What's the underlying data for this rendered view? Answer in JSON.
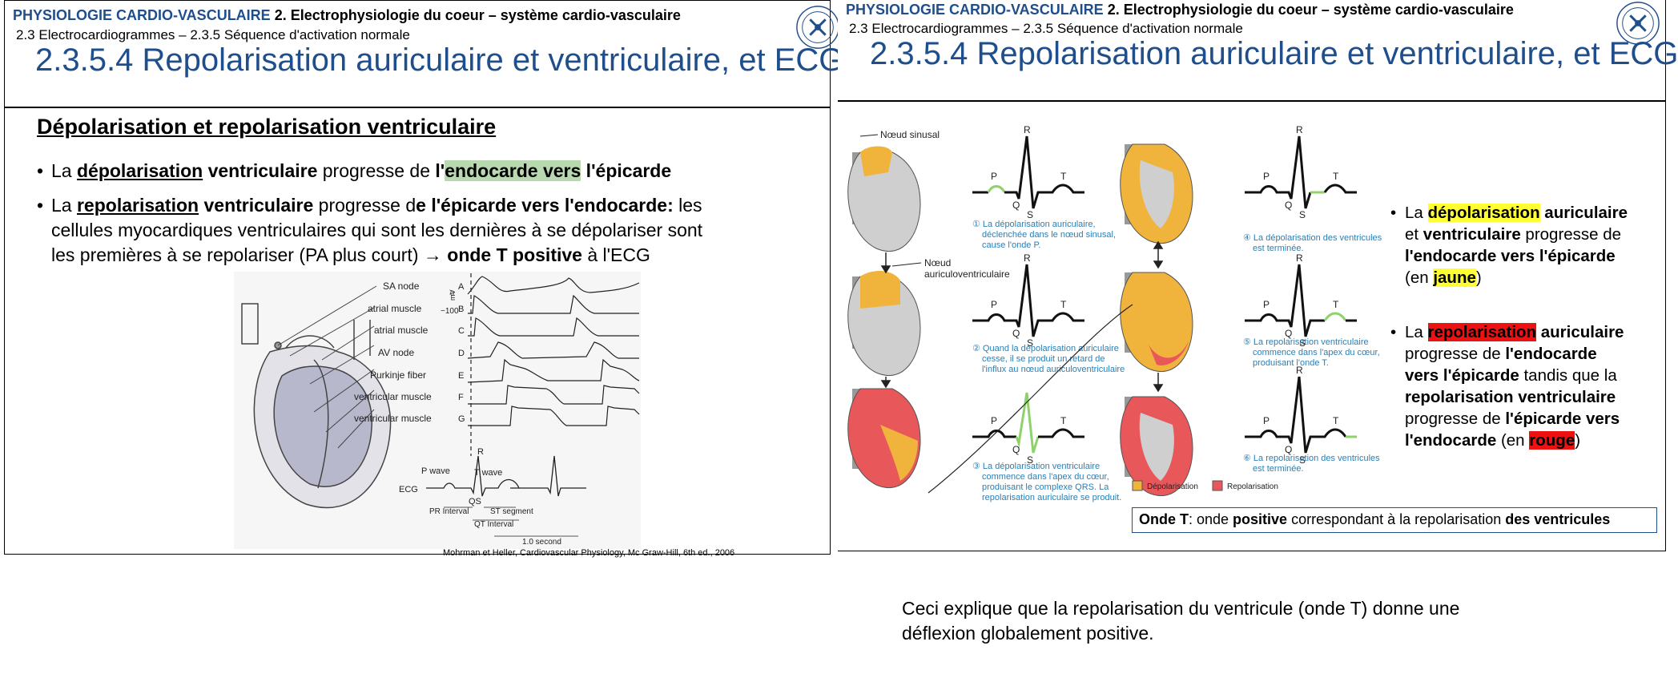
{
  "slide1": {
    "header_blue": "PHYSIOLOGIE CARDIO-VASCULAIRE",
    "header_black": " 2. Electrophysiologie du coeur – système cardio-vasculaire",
    "subheader": "2.3 Electrocardiogrammes – 2.3.5 Séquence d'activation normale",
    "title": "2.3.5.4 Repolarisation auriculaire et ventriculaire, et ECG",
    "section_heading": "Dépolarisation et repolarisation ventriculaire",
    "bullet1": {
      "p1": "La ",
      "p2": "dépolarisation",
      "p3": " ventriculaire",
      "p4": " progresse de ",
      "p5": "l'",
      "p6": "endocarde vers",
      "p7": " l'épicarde"
    },
    "bullet2": {
      "p1": "La ",
      "p2": "repolarisation",
      "p3": " ventriculaire",
      "p4": " progresse d",
      "p5": "e l'épicarde vers l'endocarde:",
      "p6": " les",
      "line2": "cellules myocardiques ventriculaires qui sont les dernières à se dépolariser sont",
      "line3a": "les premières à se repolariser (PA plus court) ",
      "arrow": "→",
      "line3b": " onde T positive",
      "line3c": " à l'ECG"
    },
    "figure": {
      "node_labels": [
        "SA node",
        "atrial muscle",
        "atrial muscle",
        "AV node",
        "Purkinje fiber",
        "ventricular muscle",
        "ventricular muscle"
      ],
      "trace_letters": [
        "A",
        "B",
        "C",
        "D",
        "E",
        "F",
        "G"
      ],
      "mv_label": "−100",
      "mv_unit": "mV",
      "zero_label": "0",
      "ecg_label": "ECG",
      "p_wave": "P wave",
      "t_wave": "T wave",
      "r_label": "R",
      "qs_label": "QS",
      "pr_interval": "PR Interval",
      "st_segment": "ST segment",
      "qt_interval": "QT Interval",
      "time_scale": "1.0 second"
    },
    "caption": "Mohrman et Heller, Cardiovascular Physiology, Mc Graw-Hill, 6th ed., 2006"
  },
  "slide2": {
    "header_blue": "PHYSIOLOGIE CARDIO-VASCULAIRE",
    "header_black": " 2. Electrophysiologie du coeur – système cardio-vasculaire",
    "subheader": "2.3 Electrocardiogrammes – 2.3.5 Séquence d'activation normale",
    "title": "2.3.5.4 Repolarisation auriculaire et ventriculaire, et ECG",
    "figure": {
      "noeud_sinusal": "Nœud sinusal",
      "noeud_av_1": "Nœud",
      "noeud_av_2": "auriculoventriculaire",
      "wave_p": "P",
      "wave_q": "Q",
      "wave_r": "R",
      "wave_s": "S",
      "wave_t": "T",
      "step1": [
        "① La dépolarisation auriculaire,",
        "déclenchée dans le nœud sinusal,",
        "cause l'onde P."
      ],
      "step2": [
        "② Quand la dépolarisation auriculaire",
        "cesse, il se produit un retard de",
        "l'influx au nœud auriculoventriculaire"
      ],
      "step3": [
        "③ La dépolarisation ventriculaire",
        "commence dans l'apex du cœur,",
        "produisant le complexe QRS. La",
        "repolarisation auriculaire se produit."
      ],
      "step4": [
        "④ La dépolarisation des ventricules",
        "est terminée."
      ],
      "step5": [
        "⑤ La repolarisation ventriculaire",
        "commence dans l'apex du cœur,",
        "produisant l'onde T."
      ],
      "step6": [
        "⑥ La repolarisation des ventricules",
        "est terminée."
      ],
      "legend_depol": "Dépolarisation",
      "legend_repol": "Repolarisation",
      "color_depol": "#f0b43c",
      "color_repol": "#e8585a"
    },
    "bullet1": {
      "p1": "La ",
      "p2": "dépolarisation",
      "p3": " auriculaire",
      "l2a": "et ",
      "l2b": "ventriculaire",
      "l2c": " progresse de",
      "l3": "l'endocarde vers l'épicarde",
      "l4a": "(en ",
      "l4b": "jaune",
      "l4c": ")"
    },
    "bullet2": {
      "p1": "La ",
      "p2": "repolarisation",
      "p3": " auriculaire",
      "l2a": "progresse de ",
      "l2b": "l'endocarde",
      "l3a": "vers l'épicarde",
      "l3b": " tandis que la",
      "l4": "repolarisation ventriculaire",
      "l5a": "progresse de ",
      "l5b": "l'épicarde vers",
      "l6a": "l'endocarde",
      "l6b": " (en ",
      "l6c": "rouge",
      "l6d": ")"
    },
    "onde_t": {
      "p1": "Onde T",
      "p2": ": onde ",
      "p3": "positive",
      "p4": " correspondant à la repolarisation ",
      "p5": "des ventricules"
    }
  },
  "note": {
    "line1": "Ceci explique que la repolarisation du ventricule (onde T) donne une",
    "line2": "déflexion globalement positive."
  }
}
